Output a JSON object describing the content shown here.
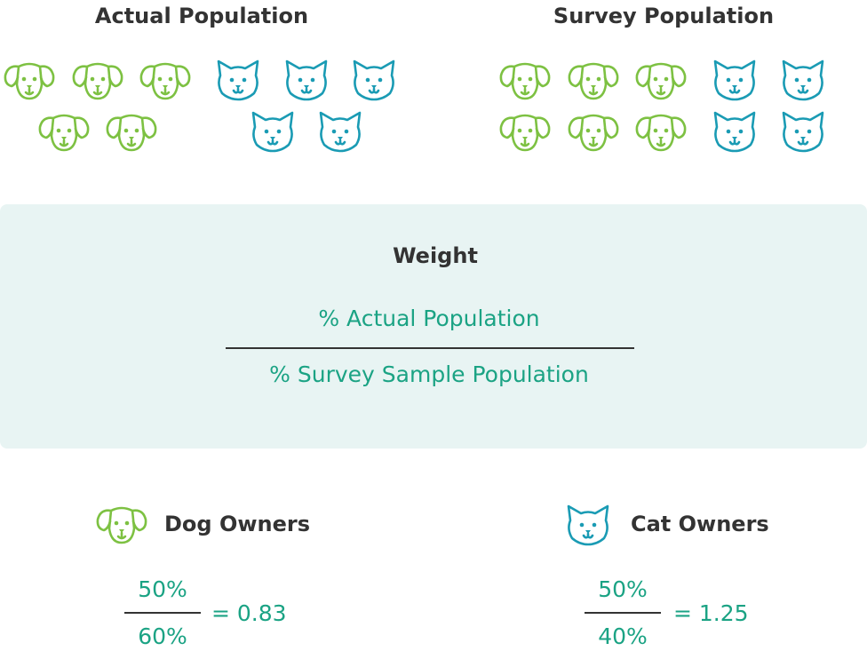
{
  "groups": [
    {
      "title": "Actual Population",
      "dogs": 5,
      "cats": 5
    },
    {
      "title": "Survey Population",
      "dogs": 6,
      "cats": 4
    }
  ],
  "formula": {
    "title": "Weight",
    "numerator": "% Actual Population",
    "denominator": "% Survey Sample Population"
  },
  "results": [
    {
      "label": "Dog Owners",
      "numerator": "50%",
      "denominator": "60%",
      "result": "= 0.83"
    },
    {
      "label": "Cat Owners",
      "numerator": "50%",
      "denominator": "40%",
      "result": "= 1.25"
    }
  ]
}
